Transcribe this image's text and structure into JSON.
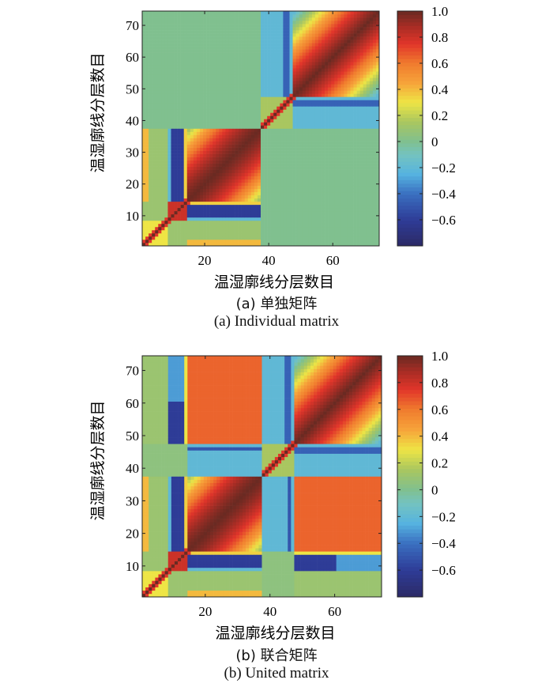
{
  "colormap": {
    "stops": [
      [
        -0.8,
        "#2c2a66"
      ],
      [
        -0.6,
        "#2e3c97"
      ],
      [
        -0.4,
        "#3a6fc0"
      ],
      [
        -0.25,
        "#56b3e0"
      ],
      [
        -0.1,
        "#74c3c0"
      ],
      [
        0.0,
        "#80c08f"
      ],
      [
        0.15,
        "#a9c660"
      ],
      [
        0.3,
        "#eee545"
      ],
      [
        0.45,
        "#f6a33a"
      ],
      [
        0.6,
        "#f07b2e"
      ],
      [
        0.75,
        "#e1352a"
      ],
      [
        0.88,
        "#a92d25"
      ],
      [
        1.0,
        "#6a2a22"
      ]
    ]
  },
  "chart_data": [
    {
      "type": "heatmap",
      "size": 74,
      "xlabel": "温湿廓线分层数目",
      "ylabel": "温湿廓线分层数目",
      "xticks": [
        20,
        40,
        60
      ],
      "yticks": [
        10,
        20,
        30,
        40,
        50,
        60,
        70
      ],
      "xlim": [
        0.5,
        74.5
      ],
      "ylim": [
        0.5,
        74.5
      ],
      "colorbar": {
        "range": [
          -0.8,
          1.0
        ],
        "ticks": [
          1.0,
          0.8,
          0.6,
          0.4,
          0.2,
          0,
          -0.2,
          -0.4,
          -0.6
        ],
        "tick_labels": [
          "1.0",
          "0.8",
          "0.6",
          "0.4",
          "0.2",
          "0",
          "−0.2",
          "−0.4",
          "−0.6"
        ]
      },
      "caption_cn": "(a) 单独矩阵",
      "caption_en": "(a) Individual matrix",
      "regions": [
        {
          "rows": [
            1,
            37
          ],
          "cols": [
            1,
            37
          ],
          "v": 0.1
        },
        {
          "rows": [
            15,
            37
          ],
          "cols": [
            15,
            37
          ],
          "v": 1.0,
          "decay": 0.012
        },
        {
          "rows": [
            15,
            37
          ],
          "cols": [
            10,
            13
          ],
          "v": -0.6
        },
        {
          "rows": [
            15,
            37
          ],
          "cols": [
            9,
            9
          ],
          "v": -0.2
        },
        {
          "rows": [
            15,
            37
          ],
          "cols": [
            14,
            14
          ],
          "v": 0.35
        },
        {
          "rows": [
            15,
            37
          ],
          "cols": [
            1,
            2
          ],
          "v": 0.45
        },
        {
          "rows": [
            1,
            2
          ],
          "cols": [
            15,
            37
          ],
          "v": 0.4
        },
        {
          "rows": [
            9,
            14
          ],
          "cols": [
            9,
            14
          ],
          "v": 0.8
        },
        {
          "rows": [
            1,
            8
          ],
          "cols": [
            1,
            8
          ],
          "v": 0.3
        },
        {
          "rows": [
            38,
            47
          ],
          "cols": [
            38,
            47
          ],
          "v": 0.15
        },
        {
          "rows": [
            48,
            74
          ],
          "cols": [
            48,
            74
          ],
          "v": 1.0,
          "decay": 0.025
        },
        {
          "rows": [
            48,
            74
          ],
          "cols": [
            38,
            47
          ],
          "v": -0.2
        },
        {
          "rows": [
            48,
            74
          ],
          "cols": [
            45,
            46
          ],
          "v": -0.45
        }
      ]
    },
    {
      "type": "heatmap",
      "size": 74,
      "xlabel": "温湿廓线分层数目",
      "ylabel": "温湿廓线分层数目",
      "xticks": [
        20,
        40,
        60
      ],
      "yticks": [
        10,
        20,
        30,
        40,
        50,
        60,
        70
      ],
      "xlim": [
        0.5,
        74.5
      ],
      "ylim": [
        0.5,
        74.5
      ],
      "colorbar": {
        "range": [
          -0.8,
          1.0
        ],
        "ticks": [
          1.0,
          0.8,
          0.6,
          0.4,
          0.2,
          0,
          -0.2,
          -0.4,
          -0.6
        ],
        "tick_labels": [
          "1.0",
          "0.8",
          "0.6",
          "0.4",
          "0.2",
          "0",
          "−0.2",
          "−0.4",
          "−0.6"
        ]
      },
      "caption_cn": "(b) 联合矩阵",
      "caption_en": "(b) United matrix",
      "regions": [
        {
          "rows": [
            1,
            74
          ],
          "cols": [
            1,
            74
          ],
          "v": 0.05
        },
        {
          "rows": [
            1,
            37
          ],
          "cols": [
            1,
            37
          ],
          "v": 0.1
        },
        {
          "rows": [
            15,
            37
          ],
          "cols": [
            15,
            37
          ],
          "v": 1.0,
          "decay": 0.012
        },
        {
          "rows": [
            15,
            37
          ],
          "cols": [
            10,
            13
          ],
          "v": -0.6
        },
        {
          "rows": [
            15,
            37
          ],
          "cols": [
            9,
            9
          ],
          "v": -0.2
        },
        {
          "rows": [
            15,
            37
          ],
          "cols": [
            14,
            14
          ],
          "v": 0.35
        },
        {
          "rows": [
            15,
            37
          ],
          "cols": [
            1,
            2
          ],
          "v": 0.45
        },
        {
          "rows": [
            1,
            2
          ],
          "cols": [
            15,
            37
          ],
          "v": 0.4
        },
        {
          "rows": [
            9,
            14
          ],
          "cols": [
            9,
            14
          ],
          "v": 0.8
        },
        {
          "rows": [
            1,
            8
          ],
          "cols": [
            1,
            8
          ],
          "v": 0.3
        },
        {
          "rows": [
            38,
            47
          ],
          "cols": [
            38,
            47
          ],
          "v": 0.15
        },
        {
          "rows": [
            48,
            74
          ],
          "cols": [
            48,
            74
          ],
          "v": 1.0,
          "decay": 0.025
        },
        {
          "rows": [
            48,
            74
          ],
          "cols": [
            38,
            47
          ],
          "v": -0.2
        },
        {
          "rows": [
            48,
            74
          ],
          "cols": [
            45,
            46
          ],
          "v": -0.45
        },
        {
          "rows": [
            48,
            74
          ],
          "cols": [
            15,
            37
          ],
          "v": 0.65
        },
        {
          "rows": [
            48,
            62
          ],
          "cols": [
            10,
            13
          ],
          "v": -0.6
        },
        {
          "rows": [
            63,
            74
          ],
          "cols": [
            10,
            13
          ],
          "v": -0.3
        },
        {
          "rows": [
            48,
            74
          ],
          "cols": [
            1,
            8
          ],
          "v": 0.1
        },
        {
          "rows": [
            38,
            47
          ],
          "cols": [
            1,
            37
          ],
          "v": -0.15
        },
        {
          "rows": [
            45,
            45
          ],
          "cols": [
            15,
            37
          ],
          "v": -0.5
        },
        {
          "rows": [
            41,
            44
          ],
          "cols": [
            11,
            13
          ],
          "v": 0.3
        },
        {
          "rows": [
            15,
            37
          ],
          "cols": [
            38,
            47
          ],
          "v": -0.2
        },
        {
          "rows": [
            15,
            37
          ],
          "cols": [
            46,
            46
          ],
          "v": -0.5
        },
        {
          "rows": [
            1,
            14
          ],
          "cols": [
            38,
            47
          ],
          "v": 0.05
        },
        {
          "rows": [
            9,
            13
          ],
          "cols": [
            48,
            60
          ],
          "v": -0.6
        },
        {
          "rows": [
            9,
            13
          ],
          "cols": [
            61,
            74
          ],
          "v": -0.3
        },
        {
          "rows": [
            14,
            14
          ],
          "cols": [
            48,
            74
          ],
          "v": 0.3
        },
        {
          "rows": [
            15,
            37
          ],
          "cols": [
            48,
            74
          ],
          "v": 0.65
        }
      ]
    }
  ]
}
